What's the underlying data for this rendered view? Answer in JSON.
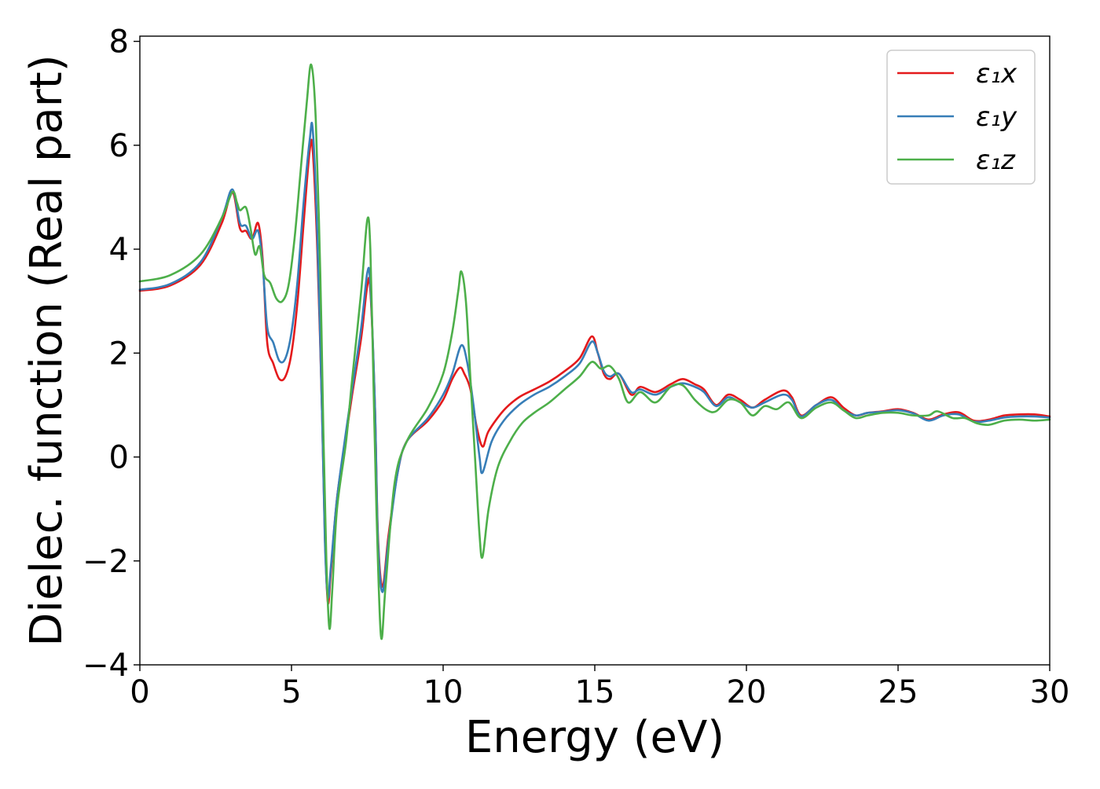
{
  "chart_data": {
    "type": "line",
    "xlabel": "Energy (eV)",
    "ylabel": "Dielec. function (Real part)",
    "xlim": [
      0,
      30
    ],
    "ylim": [
      -4,
      8.1
    ],
    "xticks": [
      0,
      5,
      10,
      15,
      20,
      25,
      30
    ],
    "xtick_labels": [
      "0",
      "5",
      "10",
      "15",
      "20",
      "25",
      "30"
    ],
    "yticks": [
      -4,
      -2,
      0,
      2,
      4,
      6,
      8
    ],
    "ytick_labels": [
      "−4",
      "−2",
      "0",
      "2",
      "4",
      "6",
      "8"
    ],
    "grid": false,
    "legend_position": "top-right",
    "series": [
      {
        "name": "ε₁x",
        "color": "#e41a1c",
        "points": [
          [
            0,
            3.2
          ],
          [
            1,
            3.3
          ],
          [
            2,
            3.7
          ],
          [
            2.7,
            4.5
          ],
          [
            3.05,
            5.1
          ],
          [
            3.3,
            4.4
          ],
          [
            3.5,
            4.35
          ],
          [
            3.7,
            4.2
          ],
          [
            3.9,
            4.5
          ],
          [
            4.05,
            3.8
          ],
          [
            4.2,
            2.2
          ],
          [
            4.4,
            1.8
          ],
          [
            4.6,
            1.5
          ],
          [
            4.8,
            1.55
          ],
          [
            5.0,
            2.0
          ],
          [
            5.2,
            3.0
          ],
          [
            5.4,
            4.5
          ],
          [
            5.6,
            5.9
          ],
          [
            5.7,
            5.9
          ],
          [
            5.85,
            4.0
          ],
          [
            6.0,
            1.0
          ],
          [
            6.1,
            -1.5
          ],
          [
            6.2,
            -2.8
          ],
          [
            6.3,
            -2.2
          ],
          [
            6.5,
            -0.8
          ],
          [
            6.8,
            0.4
          ],
          [
            7.0,
            1.2
          ],
          [
            7.3,
            2.3
          ],
          [
            7.5,
            3.3
          ],
          [
            7.6,
            3.2
          ],
          [
            7.75,
            1.0
          ],
          [
            7.85,
            -1.5
          ],
          [
            8.0,
            -2.5
          ],
          [
            8.2,
            -1.5
          ],
          [
            8.5,
            -0.3
          ],
          [
            8.8,
            0.3
          ],
          [
            9.5,
            0.7
          ],
          [
            10.0,
            1.1
          ],
          [
            10.3,
            1.5
          ],
          [
            10.55,
            1.72
          ],
          [
            10.7,
            1.6
          ],
          [
            10.9,
            1.3
          ],
          [
            11.1,
            0.6
          ],
          [
            11.3,
            0.2
          ],
          [
            11.5,
            0.5
          ],
          [
            12.0,
            0.9
          ],
          [
            12.5,
            1.15
          ],
          [
            13.0,
            1.3
          ],
          [
            13.5,
            1.45
          ],
          [
            14.0,
            1.65
          ],
          [
            14.5,
            1.9
          ],
          [
            14.9,
            2.32
          ],
          [
            15.1,
            2.0
          ],
          [
            15.3,
            1.6
          ],
          [
            15.5,
            1.5
          ],
          [
            15.8,
            1.6
          ],
          [
            16.2,
            1.2
          ],
          [
            16.5,
            1.35
          ],
          [
            17.0,
            1.25
          ],
          [
            17.5,
            1.4
          ],
          [
            17.9,
            1.5
          ],
          [
            18.3,
            1.4
          ],
          [
            18.6,
            1.3
          ],
          [
            19.0,
            1.0
          ],
          [
            19.4,
            1.2
          ],
          [
            19.8,
            1.1
          ],
          [
            20.2,
            0.95
          ],
          [
            20.6,
            1.1
          ],
          [
            21.2,
            1.28
          ],
          [
            21.5,
            1.15
          ],
          [
            21.8,
            0.8
          ],
          [
            22.3,
            1.0
          ],
          [
            22.8,
            1.15
          ],
          [
            23.2,
            0.95
          ],
          [
            23.6,
            0.8
          ],
          [
            24.0,
            0.85
          ],
          [
            24.5,
            0.88
          ],
          [
            25.0,
            0.92
          ],
          [
            25.5,
            0.85
          ],
          [
            26.0,
            0.72
          ],
          [
            26.5,
            0.82
          ],
          [
            27.0,
            0.86
          ],
          [
            27.5,
            0.7
          ],
          [
            28.0,
            0.72
          ],
          [
            28.5,
            0.8
          ],
          [
            29.0,
            0.82
          ],
          [
            29.5,
            0.82
          ],
          [
            30.0,
            0.78
          ]
        ]
      },
      {
        "name": "ε₁y",
        "color": "#377eb8",
        "points": [
          [
            0,
            3.22
          ],
          [
            1,
            3.33
          ],
          [
            2,
            3.75
          ],
          [
            2.7,
            4.6
          ],
          [
            3.05,
            5.15
          ],
          [
            3.3,
            4.5
          ],
          [
            3.5,
            4.45
          ],
          [
            3.7,
            4.2
          ],
          [
            3.9,
            4.35
          ],
          [
            4.05,
            3.7
          ],
          [
            4.2,
            2.5
          ],
          [
            4.4,
            2.2
          ],
          [
            4.6,
            1.85
          ],
          [
            4.8,
            1.9
          ],
          [
            5.0,
            2.4
          ],
          [
            5.2,
            3.4
          ],
          [
            5.4,
            4.9
          ],
          [
            5.6,
            6.1
          ],
          [
            5.7,
            6.3
          ],
          [
            5.85,
            4.3
          ],
          [
            6.0,
            1.0
          ],
          [
            6.1,
            -1.6
          ],
          [
            6.2,
            -2.7
          ],
          [
            6.3,
            -2.1
          ],
          [
            6.5,
            -0.8
          ],
          [
            6.8,
            0.5
          ],
          [
            7.0,
            1.3
          ],
          [
            7.3,
            2.5
          ],
          [
            7.5,
            3.55
          ],
          [
            7.6,
            3.3
          ],
          [
            7.75,
            1.0
          ],
          [
            7.85,
            -1.6
          ],
          [
            8.0,
            -2.6
          ],
          [
            8.2,
            -1.6
          ],
          [
            8.5,
            -0.3
          ],
          [
            8.8,
            0.3
          ],
          [
            9.5,
            0.75
          ],
          [
            10.0,
            1.2
          ],
          [
            10.3,
            1.6
          ],
          [
            10.6,
            2.15
          ],
          [
            10.8,
            1.8
          ],
          [
            11.0,
            1.0
          ],
          [
            11.2,
            0.0
          ],
          [
            11.3,
            -0.3
          ],
          [
            11.6,
            0.3
          ],
          [
            12.0,
            0.7
          ],
          [
            12.5,
            1.0
          ],
          [
            13.0,
            1.2
          ],
          [
            13.5,
            1.35
          ],
          [
            14.0,
            1.55
          ],
          [
            14.5,
            1.8
          ],
          [
            14.9,
            2.22
          ],
          [
            15.1,
            2.0
          ],
          [
            15.3,
            1.65
          ],
          [
            15.5,
            1.55
          ],
          [
            15.8,
            1.6
          ],
          [
            16.2,
            1.25
          ],
          [
            16.5,
            1.3
          ],
          [
            17.0,
            1.2
          ],
          [
            17.5,
            1.35
          ],
          [
            17.9,
            1.42
          ],
          [
            18.3,
            1.35
          ],
          [
            18.6,
            1.25
          ],
          [
            19.0,
            0.98
          ],
          [
            19.4,
            1.15
          ],
          [
            19.8,
            1.05
          ],
          [
            20.2,
            0.95
          ],
          [
            20.6,
            1.05
          ],
          [
            21.2,
            1.2
          ],
          [
            21.5,
            1.1
          ],
          [
            21.8,
            0.78
          ],
          [
            22.3,
            1.0
          ],
          [
            22.8,
            1.1
          ],
          [
            23.2,
            0.9
          ],
          [
            23.6,
            0.8
          ],
          [
            24.0,
            0.85
          ],
          [
            24.5,
            0.87
          ],
          [
            25.0,
            0.9
          ],
          [
            25.5,
            0.84
          ],
          [
            26.0,
            0.7
          ],
          [
            26.5,
            0.8
          ],
          [
            27.0,
            0.82
          ],
          [
            27.5,
            0.68
          ],
          [
            28.0,
            0.7
          ],
          [
            28.5,
            0.76
          ],
          [
            29.0,
            0.78
          ],
          [
            29.5,
            0.78
          ],
          [
            30.0,
            0.76
          ]
        ]
      },
      {
        "name": "ε₁z",
        "color": "#4daf4a",
        "points": [
          [
            0,
            3.38
          ],
          [
            1,
            3.5
          ],
          [
            2,
            3.9
          ],
          [
            2.7,
            4.6
          ],
          [
            3.05,
            5.1
          ],
          [
            3.2,
            4.9
          ],
          [
            3.3,
            4.75
          ],
          [
            3.5,
            4.8
          ],
          [
            3.65,
            4.4
          ],
          [
            3.8,
            3.9
          ],
          [
            3.95,
            4.05
          ],
          [
            4.1,
            3.5
          ],
          [
            4.3,
            3.35
          ],
          [
            4.5,
            3.05
          ],
          [
            4.7,
            3.0
          ],
          [
            4.9,
            3.3
          ],
          [
            5.1,
            4.2
          ],
          [
            5.3,
            5.5
          ],
          [
            5.5,
            6.8
          ],
          [
            5.65,
            7.55
          ],
          [
            5.8,
            6.5
          ],
          [
            5.95,
            3.5
          ],
          [
            6.05,
            0.5
          ],
          [
            6.15,
            -2.0
          ],
          [
            6.25,
            -3.3
          ],
          [
            6.35,
            -2.5
          ],
          [
            6.5,
            -1.0
          ],
          [
            6.8,
            0.3
          ],
          [
            7.0,
            1.5
          ],
          [
            7.3,
            3.2
          ],
          [
            7.5,
            4.57
          ],
          [
            7.6,
            4.0
          ],
          [
            7.7,
            1.5
          ],
          [
            7.8,
            -1.0
          ],
          [
            7.95,
            -3.45
          ],
          [
            8.1,
            -2.5
          ],
          [
            8.4,
            -0.5
          ],
          [
            8.8,
            0.3
          ],
          [
            9.5,
            0.95
          ],
          [
            10.0,
            1.6
          ],
          [
            10.3,
            2.4
          ],
          [
            10.5,
            3.2
          ],
          [
            10.6,
            3.57
          ],
          [
            10.75,
            3.0
          ],
          [
            10.9,
            1.5
          ],
          [
            11.05,
            0.0
          ],
          [
            11.2,
            -1.5
          ],
          [
            11.3,
            -1.92
          ],
          [
            11.5,
            -1.0
          ],
          [
            11.8,
            -0.2
          ],
          [
            12.2,
            0.3
          ],
          [
            12.6,
            0.65
          ],
          [
            13.0,
            0.85
          ],
          [
            13.5,
            1.05
          ],
          [
            14.0,
            1.3
          ],
          [
            14.5,
            1.55
          ],
          [
            14.9,
            1.83
          ],
          [
            15.2,
            1.7
          ],
          [
            15.5,
            1.75
          ],
          [
            15.8,
            1.5
          ],
          [
            16.1,
            1.05
          ],
          [
            16.5,
            1.25
          ],
          [
            17.0,
            1.05
          ],
          [
            17.5,
            1.35
          ],
          [
            17.9,
            1.38
          ],
          [
            18.3,
            1.1
          ],
          [
            18.7,
            0.9
          ],
          [
            19.0,
            0.88
          ],
          [
            19.4,
            1.1
          ],
          [
            19.8,
            1.05
          ],
          [
            20.2,
            0.8
          ],
          [
            20.6,
            0.98
          ],
          [
            21.0,
            0.92
          ],
          [
            21.4,
            1.05
          ],
          [
            21.8,
            0.75
          ],
          [
            22.3,
            0.95
          ],
          [
            22.8,
            1.05
          ],
          [
            23.2,
            0.9
          ],
          [
            23.6,
            0.75
          ],
          [
            24.0,
            0.8
          ],
          [
            24.5,
            0.85
          ],
          [
            25.0,
            0.85
          ],
          [
            25.5,
            0.8
          ],
          [
            26.0,
            0.8
          ],
          [
            26.3,
            0.88
          ],
          [
            26.8,
            0.75
          ],
          [
            27.2,
            0.75
          ],
          [
            27.6,
            0.65
          ],
          [
            28.0,
            0.62
          ],
          [
            28.5,
            0.7
          ],
          [
            29.0,
            0.72
          ],
          [
            29.5,
            0.7
          ],
          [
            30.0,
            0.72
          ]
        ]
      }
    ]
  }
}
